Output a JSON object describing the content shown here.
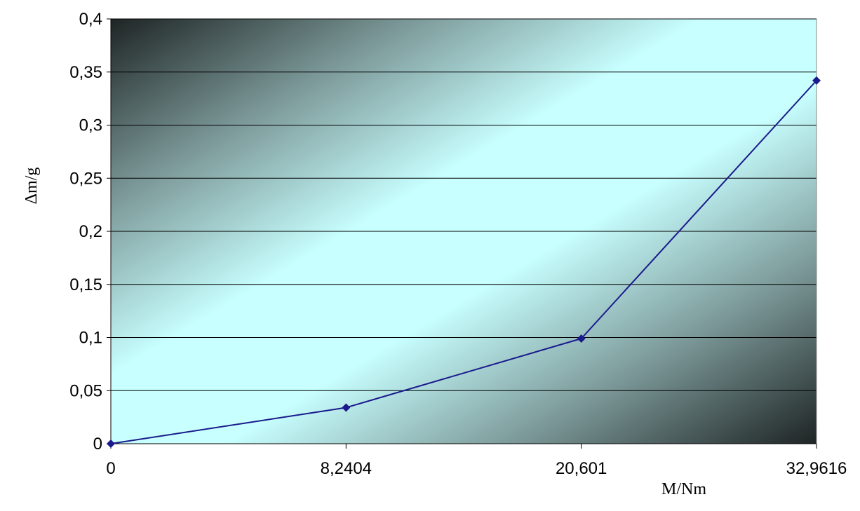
{
  "chart_data": {
    "type": "line",
    "categories": [
      "0",
      "8,2404",
      "20,601",
      "32,9616"
    ],
    "series": [
      {
        "values": [
          0,
          0.034,
          0.099,
          0.342
        ],
        "color": "#1a1a8c"
      }
    ],
    "xlabel": "M/Nm",
    "ylabel": "Δm/g",
    "ylim": [
      0,
      0.4
    ],
    "y_ticks": [
      "0",
      "0,05",
      "0,1",
      "0,15",
      "0,2",
      "0,25",
      "0,3",
      "0,35",
      "0,4"
    ],
    "grid": "horizontal",
    "marker": "diamond",
    "plot_background": "gradient dark corners to light cyan"
  }
}
